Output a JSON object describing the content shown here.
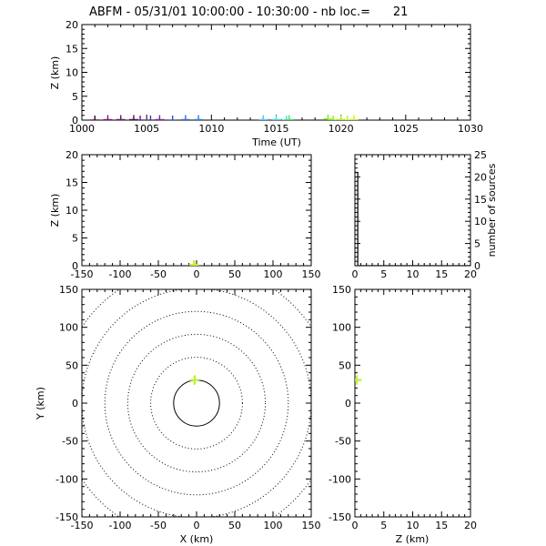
{
  "title": "ABFM - 05/31/01 10:00:00 - 10:30:00 - nb loc.=      21",
  "colors": {
    "background": "#ffffff",
    "axes": "#000000",
    "time_gradient": [
      "#3b003b",
      "#7a1a7a",
      "#4a2aa0",
      "#3050c0",
      "#2f80e8",
      "#55c8ff",
      "#39e3c0",
      "#4ee07a",
      "#74ee2a",
      "#a8f020",
      "#ccf030"
    ]
  },
  "chart_data": [
    {
      "id": "z-vs-time",
      "type": "scatter",
      "xlabel": "Time (UT)",
      "ylabel": "Z (km)",
      "xlim": [
        1000,
        1030
      ],
      "ylim": [
        0,
        20
      ],
      "xticks": [
        "1000",
        "1005",
        "1010",
        "1015",
        "1020",
        "1025",
        "1030"
      ],
      "yticks": [
        "0",
        "5",
        "10",
        "15",
        "20"
      ],
      "marker": "plus",
      "points": [
        {
          "x": 1001.0,
          "y": 0.0,
          "color": "#3b003b"
        },
        {
          "x": 1002.0,
          "y": 0.1,
          "color": "#7a1a7a"
        },
        {
          "x": 1003.0,
          "y": 0.1,
          "color": "#6a1a6a"
        },
        {
          "x": 1004.0,
          "y": 0.1,
          "color": "#4a0a4a"
        },
        {
          "x": 1004.5,
          "y": 0.0,
          "color": "#5a1a8a"
        },
        {
          "x": 1005.3,
          "y": 0.0,
          "color": "#4a2aa0"
        },
        {
          "x": 1006.0,
          "y": 0.1,
          "color": "#7a2a9a"
        },
        {
          "x": 1007.0,
          "y": 0.0,
          "color": "#3050c0"
        },
        {
          "x": 1008.0,
          "y": 0.1,
          "color": "#3a70d8"
        },
        {
          "x": 1009.0,
          "y": 0.1,
          "color": "#2f80e8"
        },
        {
          "x": 1014.0,
          "y": 0.1,
          "color": "#55c8ff"
        },
        {
          "x": 1015.0,
          "y": 0.1,
          "color": "#40dcd8"
        },
        {
          "x": 1015.8,
          "y": 0.0,
          "color": "#39e3c0"
        },
        {
          "x": 1016.0,
          "y": 0.1,
          "color": "#4ee07a"
        },
        {
          "x": 1019.0,
          "y": 0.2,
          "color": "#74ee2a"
        },
        {
          "x": 1019.4,
          "y": 0.0,
          "color": "#8aee20"
        },
        {
          "x": 1020.0,
          "y": 0.1,
          "color": "#a8f020"
        },
        {
          "x": 1020.5,
          "y": 0.0,
          "color": "#b8f028"
        },
        {
          "x": 1021.0,
          "y": 0.1,
          "color": "#ccf030"
        }
      ]
    },
    {
      "id": "z-vs-x",
      "type": "scatter",
      "xlabel": "",
      "ylabel": "Z (km)",
      "xlim": [
        -150,
        150
      ],
      "ylim": [
        0,
        20
      ],
      "xticks": [
        "-150",
        "-100",
        "-50",
        "0",
        "50",
        "100",
        "150"
      ],
      "yticks": [
        "0",
        "5",
        "10",
        "15",
        "20"
      ],
      "marker": "plus",
      "points": [
        {
          "x": -3,
          "y": 0.1,
          "color": "#a8f020"
        },
        {
          "x": -4,
          "y": 0.2,
          "color": "#ccf030"
        }
      ]
    },
    {
      "id": "source-histogram",
      "type": "line",
      "xlabel": "",
      "ylabel": "number of sources",
      "xlim": [
        0,
        20
      ],
      "ylim": [
        0,
        25
      ],
      "yaxis_side": "right",
      "xticks": [
        "0",
        "5",
        "10",
        "15",
        "20"
      ],
      "yticks": [
        "0",
        "5",
        "10",
        "15",
        "20",
        "25"
      ],
      "x": [
        0.0,
        0.1,
        0.1,
        0.5,
        0.5,
        20
      ],
      "y": [
        21,
        21,
        21,
        21,
        0,
        0
      ]
    },
    {
      "id": "y-vs-x",
      "type": "scatter",
      "xlabel": "X (km)",
      "ylabel": "Y (km)",
      "xlim": [
        -150,
        150
      ],
      "ylim": [
        -150,
        150
      ],
      "xticks": [
        "-150",
        "-100",
        "-50",
        "0",
        "50",
        "100",
        "150"
      ],
      "yticks": [
        "-150",
        "-100",
        "-50",
        "0",
        "50",
        "100",
        "150"
      ],
      "range_rings_km": [
        30,
        60,
        90,
        120,
        150,
        180,
        210
      ],
      "marker": "plus",
      "points": [
        {
          "x": -3,
          "y": 30,
          "color": "#a8f020"
        },
        {
          "x": -2,
          "y": 31,
          "color": "#ccf030"
        }
      ]
    },
    {
      "id": "y-vs-z",
      "type": "scatter",
      "xlabel": "Z (km)",
      "ylabel": "",
      "xlim": [
        0,
        20
      ],
      "ylim": [
        -150,
        150
      ],
      "xticks": [
        "0",
        "5",
        "10",
        "15",
        "20"
      ],
      "yticks": [
        "-150",
        "-100",
        "-50",
        "0",
        "50",
        "100",
        "150"
      ],
      "marker": "plus",
      "points": [
        {
          "x": 0.3,
          "y": 30,
          "color": "#a8f020"
        },
        {
          "x": 0.4,
          "y": 31,
          "color": "#ccf030"
        }
      ]
    }
  ]
}
